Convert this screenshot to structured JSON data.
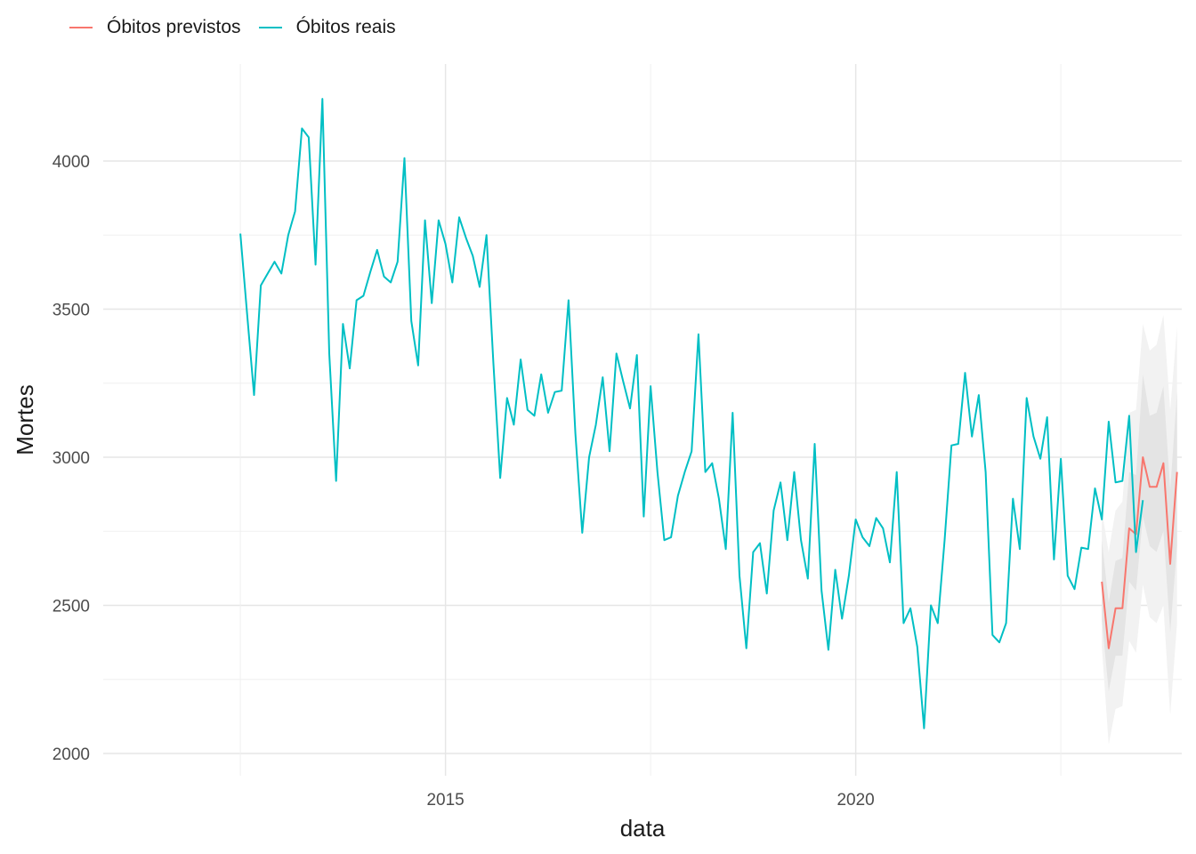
{
  "chart_data": {
    "type": "line",
    "xlabel": "data",
    "ylabel": "Mortes",
    "x_ticks": [
      2015,
      2020
    ],
    "y_ticks": [
      2000,
      2500,
      3000,
      3500,
      4000
    ],
    "xlim": [
      2011.2,
      2024.3
    ],
    "ylim": [
      1925,
      4240
    ],
    "grid": true,
    "legend_position": "top-left",
    "series": [
      {
        "name": "Óbitos previstos",
        "color": "#F8766D",
        "start": 2023.0,
        "step_months": 1,
        "values": [
          2580,
          2355,
          2490,
          2490,
          2760,
          2740,
          3000,
          2900,
          2900,
          2980,
          2640,
          2950
        ],
        "interval_80_lower": [
          2450,
          2210,
          2330,
          2330,
          2580,
          2550,
          2800,
          2700,
          2680,
          2750,
          2410,
          2700
        ],
        "interval_80_upper": [
          2720,
          2510,
          2650,
          2660,
          2950,
          2940,
          3280,
          3140,
          3150,
          3240,
          2890,
          3220
        ],
        "interval_95_lower": [
          2360,
          2030,
          2150,
          2160,
          2380,
          2340,
          2570,
          2460,
          2440,
          2500,
          2130,
          2440
        ],
        "interval_95_upper": [
          2820,
          2680,
          2820,
          2850,
          3150,
          3160,
          3450,
          3360,
          3380,
          3480,
          3160,
          3440
        ]
      },
      {
        "name": "Óbitos reais",
        "color": "#00BFC4",
        "start": 2012.5,
        "step_months": 1,
        "values": [
          3755,
          3480,
          3210,
          3580,
          3620,
          3660,
          3620,
          3750,
          3830,
          4110,
          4080,
          3650,
          4210,
          3350,
          2920,
          3450,
          3300,
          3530,
          3545,
          3625,
          3700,
          3610,
          3590,
          3660,
          4010,
          3460,
          3310,
          3800,
          3520,
          3800,
          3720,
          3590,
          3810,
          3740,
          3680,
          3575,
          3750,
          3320,
          2930,
          3200,
          3110,
          3330,
          3160,
          3140,
          3280,
          3150,
          3220,
          3225,
          3530,
          3080,
          2745,
          3000,
          3110,
          3270,
          3020,
          3350,
          3255,
          3165,
          3345,
          2800,
          3240,
          2950,
          2720,
          2730,
          2870,
          2950,
          3020,
          3415,
          2950,
          2980,
          2860,
          2690,
          3150,
          2600,
          2355,
          2680,
          2710,
          2540,
          2820,
          2915,
          2720,
          2950,
          2720,
          2590,
          3045,
          2550,
          2350,
          2620,
          2455,
          2600,
          2790,
          2730,
          2700,
          2795,
          2760,
          2645,
          2950,
          2440,
          2490,
          2360,
          2085,
          2500,
          2440,
          2720,
          3040,
          3045,
          3285,
          3070,
          3210,
          2950,
          2400,
          2375,
          2440,
          2860,
          2690,
          3200,
          3070,
          2995,
          3135,
          2655,
          2995,
          2600,
          2555,
          2695,
          2690,
          2895,
          2790,
          3120,
          2915,
          2920,
          3140,
          2680,
          2855
        ]
      }
    ]
  }
}
